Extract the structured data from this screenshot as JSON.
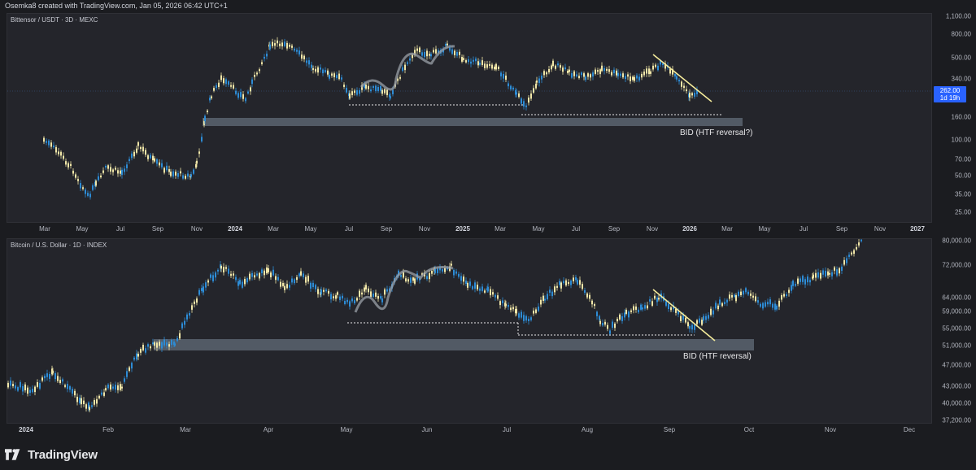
{
  "header": {
    "text": "Osemka8 created with TradingView.com, Jan 05, 2026 06:42 UTC+1"
  },
  "top_chart": {
    "symbol_label": "Bittensor / USDT · 3D · MEXC",
    "y_ticks": [
      "1,100.00",
      "800.00",
      "500.00",
      "340.00",
      "160.00",
      "100.00",
      "70.00",
      "50.00",
      "35.00",
      "25.00"
    ],
    "x_ticks": [
      "Mar",
      "May",
      "Jul",
      "Sep",
      "Nov",
      "2024",
      "Mar",
      "May",
      "Jul",
      "Sep",
      "Nov",
      "2025",
      "Mar",
      "May",
      "Jul",
      "Sep",
      "Nov",
      "2026",
      "Mar",
      "May",
      "Jul",
      "Sep",
      "Nov",
      "2027"
    ],
    "price_tag": {
      "price": "262.00",
      "countdown": "1d 19h"
    },
    "annotation": "BID (HTF reversal?)"
  },
  "bottom_chart": {
    "symbol_label": "Bitcoin / U.S. Dollar · 1D · INDEX",
    "y_ticks": [
      "80,000.00",
      "72,000.00",
      "64,000.00",
      "59,000.00",
      "55,000.00",
      "51,000.00",
      "47,000.00",
      "43,000.00",
      "40,000.00",
      "37,200.00"
    ],
    "x_ticks": [
      "2024",
      "Feb",
      "Mar",
      "Apr",
      "May",
      "Jun",
      "Jul",
      "Aug",
      "Sep",
      "Oct",
      "Nov",
      "Dec"
    ],
    "annotation": "BID (HTF reversal)"
  },
  "colors": {
    "up": "#2d8cd6",
    "down": "#f0e6a8",
    "zone": "#5a6470",
    "trendline": "#f3ea9a",
    "accent": "#2962ff"
  },
  "footer": {
    "brand": "TradingView",
    "logo_icon": "tradingview-logo-icon"
  }
}
